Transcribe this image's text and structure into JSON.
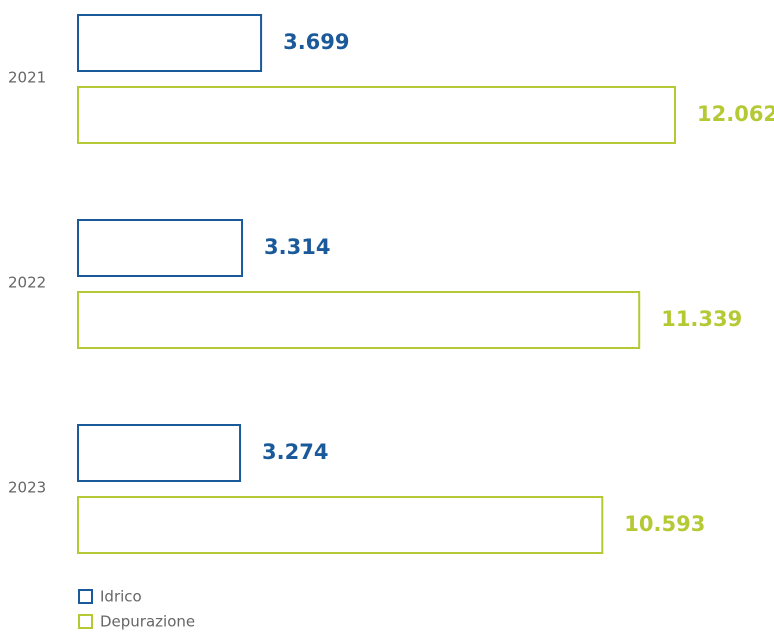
{
  "chart_data": {
    "type": "bar",
    "orientation": "horizontal",
    "categories": [
      "2021",
      "2022",
      "2023"
    ],
    "series": [
      {
        "name": "Idrico",
        "color": "#1a5a9a",
        "values": [
          3699,
          3314,
          3274
        ],
        "value_labels": [
          "3.699",
          "3.314",
          "3.274"
        ]
      },
      {
        "name": "Depurazione",
        "color": "#b5c935",
        "values": [
          12062,
          11339,
          10593
        ],
        "value_labels": [
          "12.062",
          "11.339",
          "10.593"
        ]
      }
    ]
  }
}
